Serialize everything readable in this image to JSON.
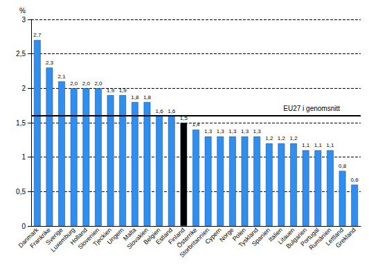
{
  "chart_data": {
    "type": "bar",
    "y_label": "%",
    "categories": [
      "Danmark",
      "Frankrike",
      "Sverige",
      "Luxemburg",
      "Holland",
      "Slovenien",
      "Tjeckien",
      "Ungern",
      "Malta",
      "Slovakien",
      "Belgien",
      "Estland",
      "Finland",
      "Österrike",
      "Storbritannien",
      "Cypern",
      "Norge",
      "Polen",
      "Tyskland",
      "Spanien",
      "Italien",
      "Litauen",
      "Bulgarien",
      "Portugal",
      "Rumänien",
      "Lettland",
      "Grekland"
    ],
    "values": [
      2.7,
      2.3,
      2.1,
      2.0,
      2.0,
      2.0,
      1.9,
      1.9,
      1.8,
      1.8,
      1.6,
      1.6,
      1.5,
      1.4,
      1.3,
      1.3,
      1.3,
      1.3,
      1.3,
      1.2,
      1.2,
      1.2,
      1.1,
      1.1,
      1.1,
      0.8,
      0.6
    ],
    "value_labels": [
      "2,7",
      "2,3",
      "2,1",
      "2,0",
      "2,0",
      "2,0",
      "1,9",
      "1,9",
      "1,8",
      "1,8",
      "1,6",
      "1,6",
      "1,5",
      "1,4",
      "1,3",
      "1,3",
      "1,3",
      "1,3",
      "1,3",
      "1,2",
      "1,2",
      "1,2",
      "1,1",
      "1,1",
      "1,1",
      "0,8",
      "0,6"
    ],
    "colors": [
      "#2f8ff0",
      "#2f8ff0",
      "#2f8ff0",
      "#2f8ff0",
      "#2f8ff0",
      "#2f8ff0",
      "#2f8ff0",
      "#2f8ff0",
      "#2f8ff0",
      "#2f8ff0",
      "#2f8ff0",
      "#2f8ff0",
      "#000000",
      "#2f8ff0",
      "#2f8ff0",
      "#2f8ff0",
      "#2f8ff0",
      "#2f8ff0",
      "#2f8ff0",
      "#2f8ff0",
      "#2f8ff0",
      "#2f8ff0",
      "#2f8ff0",
      "#2f8ff0",
      "#2f8ff0",
      "#2f8ff0",
      "#2f8ff0"
    ],
    "ylim": [
      0,
      3
    ],
    "yticks": [
      0,
      {
        "value": 0.5,
        "label": "0,5"
      },
      1,
      {
        "value": 1.5,
        "label": "1,5"
      },
      2,
      {
        "value": 2.5,
        "label": "2,5"
      },
      3
    ],
    "grid": true,
    "data_labels": true,
    "annotations": [
      {
        "text": "EU27 i genomsnitt",
        "y": 1.6
      }
    ]
  }
}
